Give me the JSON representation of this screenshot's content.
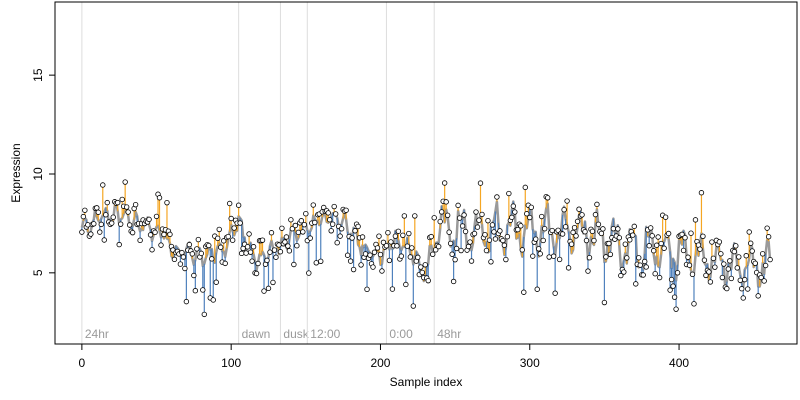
{
  "chart_data": {
    "type": "line",
    "title": "",
    "xlabel": "Sample index",
    "ylabel": "Expression",
    "xlim": [
      -18,
      479
    ],
    "ylim": [
      1.4,
      18.7
    ],
    "x_ticks": [
      0,
      100,
      200,
      300,
      400
    ],
    "y_ticks": [
      5,
      10,
      15
    ],
    "grid": false,
    "legend": "none",
    "colors": {
      "fitted_line": "#9a9a9a",
      "residual_above": "#f5a623",
      "residual_below": "#4f81bd",
      "point_fill": "#ffffff",
      "point_stroke": "#000000",
      "marker_line": "#dddddd",
      "marker_text": "#9a9a9a"
    },
    "markers": [
      {
        "label": "24hr",
        "x": 0
      },
      {
        "label": "dawn",
        "x": 105
      },
      {
        "label": "dusk",
        "x": 133
      },
      {
        "label": "12:00",
        "x": 151
      },
      {
        "label": "0:00",
        "x": 204
      },
      {
        "label": "48hr",
        "x": 236
      }
    ],
    "trend_knots": {
      "x": [
        0,
        15,
        30,
        45,
        55,
        60,
        70,
        80,
        95,
        105,
        115,
        125,
        135,
        145,
        152,
        160,
        170,
        180,
        190,
        200,
        210,
        220,
        232,
        236,
        245,
        260,
        280,
        300,
        320,
        340,
        360,
        380,
        400,
        420,
        440,
        462
      ],
      "y": [
        7.2,
        8.0,
        7.8,
        7.3,
        7.0,
        6.2,
        6.0,
        5.8,
        6.3,
        7.5,
        5.7,
        6.0,
        6.6,
        7.0,
        7.3,
        7.8,
        7.9,
        7.2,
        6.2,
        5.8,
        6.8,
        6.0,
        4.9,
        7.2,
        7.4,
        6.9,
        7.2,
        7.3,
        7.1,
        7.0,
        6.4,
        6.2,
        6.0,
        5.7,
        5.3,
        5.4
      ]
    },
    "series": [
      {
        "points": 462
      }
    ]
  }
}
